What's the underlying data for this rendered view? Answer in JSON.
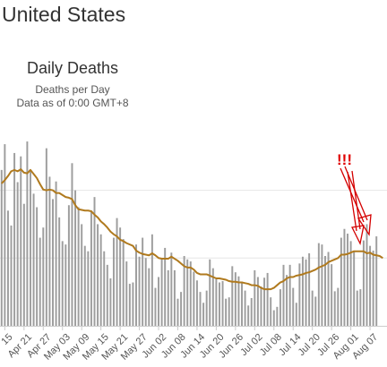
{
  "page": {
    "country": "United States"
  },
  "chart_data": {
    "type": "bar",
    "title": "Daily Deaths",
    "subtitle": "Deaths per Day",
    "data_note": "Data as of 0:00 GMT+8",
    "x_tick_labels": [
      "15",
      "Apr 21",
      "Apr 27",
      "May 03",
      "May 09",
      "May 15",
      "May 21",
      "May 27",
      "Jun 02",
      "Jun 08",
      "Jun 14",
      "Jun 20",
      "Jun 26",
      "Jul 02",
      "Jul 08",
      "Jul 14",
      "Jul 20",
      "Jul 26",
      "Aug 01",
      "Aug 07"
    ],
    "ylim": [
      0,
      2800
    ],
    "gridlines": [
      1000,
      2000,
      3000
    ],
    "grid": true,
    "series": [
      {
        "type": "bar",
        "color": "#9e9e9e",
        "values": [
          2300,
          2680,
          1700,
          1480,
          2550,
          2120,
          2500,
          1800,
          2720,
          2300,
          1950,
          1750,
          1300,
          1450,
          2620,
          2200,
          1870,
          2130,
          1600,
          1250,
          1200,
          1780,
          2400,
          2000,
          1750,
          1500,
          1180,
          1100,
          1700,
          1900,
          1500,
          1350,
          1100,
          900,
          700,
          1300,
          1590,
          1450,
          1280,
          950,
          620,
          640,
          1200,
          1020,
          1300,
          1000,
          850,
          1350,
          560,
          720,
          1000,
          1150,
          820,
          1080,
          820,
          400,
          500,
          1030,
          980,
          950,
          800,
          670,
          500,
          340,
          520,
          980,
          850,
          690,
          640,
          660,
          400,
          420,
          880,
          790,
          730,
          650,
          520,
          300,
          410,
          820,
          720,
          580,
          710,
          780,
          420,
          230,
          280,
          540,
          900,
          750,
          900,
          560,
          340,
          920,
          1020,
          980,
          1070,
          520,
          430,
          1220,
          1200,
          1030,
          1090,
          910,
          510,
          560,
          1300,
          1430,
          1360,
          1250,
          1110,
          520,
          540,
          1260,
          1500,
          1180,
          1110,
          1320
        ]
      },
      {
        "type": "line",
        "name": "average",
        "color": "#b07a1e",
        "values": [
          2100,
          2150,
          2210,
          2280,
          2300,
          2280,
          2310,
          2260,
          2250,
          2300,
          2240,
          2180,
          2090,
          2010,
          2000,
          2010,
          2000,
          1960,
          1960,
          1930,
          1900,
          1890,
          1870,
          1780,
          1720,
          1710,
          1700,
          1700,
          1690,
          1640,
          1600,
          1540,
          1500,
          1450,
          1390,
          1350,
          1320,
          1270,
          1250,
          1220,
          1200,
          1180,
          1110,
          1080,
          1060,
          1050,
          1040,
          1070,
          1040,
          1000,
          990,
          990,
          990,
          1020,
          990,
          960,
          920,
          880,
          860,
          860,
          830,
          780,
          760,
          760,
          760,
          740,
          720,
          700,
          700,
          690,
          680,
          660,
          650,
          650,
          640,
          640,
          630,
          620,
          600,
          600,
          590,
          560,
          540,
          540,
          540,
          560,
          600,
          640,
          660,
          700,
          720,
          720,
          740,
          750,
          760,
          780,
          790,
          810,
          830,
          860,
          880,
          900,
          940,
          960,
          980,
          1000,
          1050,
          1050,
          1060,
          1080,
          1100,
          1100,
          1100,
          1100,
          1070,
          1080,
          1050,
          1040,
          1030,
          1000
        ]
      }
    ],
    "annotations": [
      {
        "type": "text",
        "text": "!!!",
        "color": "#e00000"
      },
      {
        "type": "arrow",
        "color": "#d40000"
      },
      {
        "type": "arrow",
        "color": "#d40000"
      }
    ]
  }
}
